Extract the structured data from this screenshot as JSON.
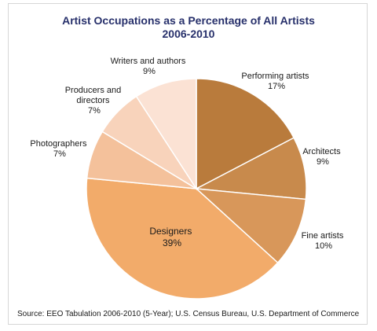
{
  "chart_data": {
    "type": "pie",
    "title": [
      "Artist Occupations as a Percentage of All Artists",
      "2006-2010"
    ],
    "slices": [
      {
        "name": "Performing artists",
        "value": 17,
        "value_label": "17%",
        "color": "#b97b3c"
      },
      {
        "name": "Architects",
        "value": 9,
        "value_label": "9%",
        "color": "#c88a4c"
      },
      {
        "name": "Fine artists",
        "value": 10,
        "value_label": "10%",
        "color": "#d8975a"
      },
      {
        "name": "Designers",
        "value": 39,
        "value_label": "39%",
        "color": "#f2ab6a"
      },
      {
        "name": "Photographers",
        "value": 7,
        "value_label": "7%",
        "color": "#f4c19b"
      },
      {
        "name": "Producers and directors",
        "value": 7,
        "value_label": "7%",
        "color": "#f8d3bb"
      },
      {
        "name": "Writers and authors",
        "value": 9,
        "value_label": "9%",
        "color": "#fbe2d4"
      }
    ],
    "start_angle_deg": 0,
    "direction": "clockwise",
    "slice_edge_color": "#ffffff"
  },
  "source": "Source: EEO Tabulation 2006-2010 (5-Year); U.S. Census Bureau, U.S. Department of Commerce"
}
